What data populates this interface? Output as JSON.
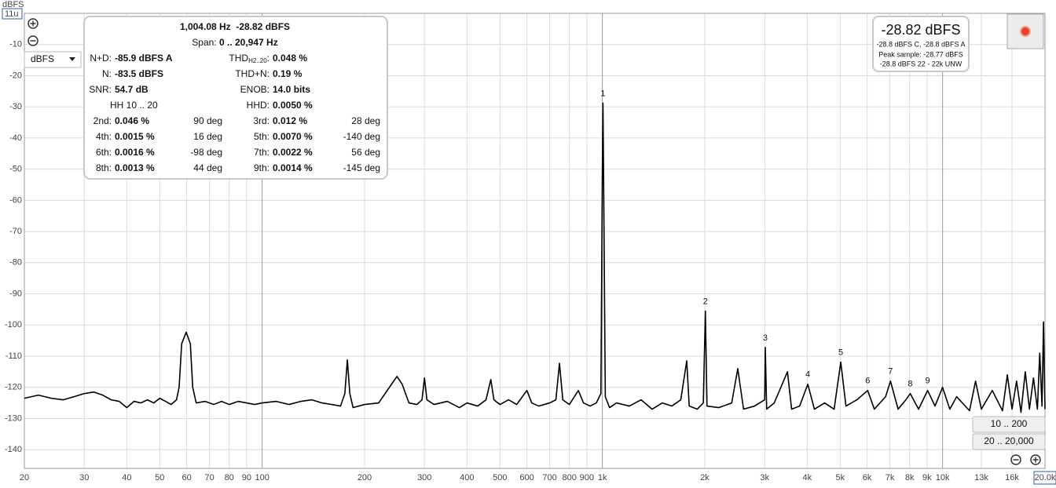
{
  "chart_data": {
    "type": "line",
    "xlog": true,
    "grid": true,
    "ylabel": "dBFS",
    "y_field": "11u",
    "xlim": [
      20,
      20000
    ],
    "ylim": [
      -146,
      0
    ],
    "xticks": [
      20,
      30,
      40,
      50,
      60,
      70,
      80,
      90,
      100,
      200,
      300,
      400,
      500,
      600,
      700,
      800,
      900,
      {
        "value": 1000,
        "label": "1k"
      },
      {
        "value": 2000,
        "label": "2k"
      },
      {
        "value": 3000,
        "label": "3k"
      },
      {
        "value": 4000,
        "label": "4k"
      },
      {
        "value": 5000,
        "label": "5k"
      },
      {
        "value": 6000,
        "label": "6k"
      },
      {
        "value": 7000,
        "label": "7k"
      },
      {
        "value": 8000,
        "label": "8k"
      },
      {
        "value": 9000,
        "label": "9k"
      },
      {
        "value": 10000,
        "label": "10k"
      },
      {
        "value": 13000,
        "label": "13k"
      },
      {
        "value": 16000,
        "label": "16k"
      },
      {
        "value": 20000,
        "label": "20.0k"
      }
    ],
    "yticks": [
      -10,
      -20,
      -30,
      -40,
      -50,
      -60,
      -70,
      -80,
      -90,
      -100,
      -110,
      -120,
      -130,
      -140
    ],
    "x": [
      20,
      22,
      24,
      26,
      28,
      30,
      32,
      34,
      36,
      38,
      40,
      42,
      44,
      46,
      48,
      50,
      52,
      54,
      56,
      57,
      58,
      59.8,
      61.5,
      62.5,
      64,
      68,
      72,
      76,
      80,
      85,
      90,
      95,
      100,
      110,
      120,
      130,
      140,
      150,
      160,
      170,
      175,
      178,
      181,
      185,
      200,
      220,
      240,
      249,
      258,
      270,
      285,
      295,
      300,
      305,
      320,
      350,
      380,
      400,
      430,
      455,
      470,
      480,
      500,
      530,
      560,
      600,
      620,
      650,
      700,
      730,
      748,
      765,
      800,
      850,
      880,
      920,
      960,
      990,
      1000,
      1004,
      1008,
      1020,
      1050,
      1100,
      1200,
      1300,
      1400,
      1500,
      1600,
      1700,
      1770,
      1800,
      1900,
      1980,
      2008,
      2030,
      2200,
      2400,
      2500,
      2600,
      2800,
      3000,
      3012,
      3040,
      3200,
      3500,
      3600,
      3800,
      4016,
      4200,
      4500,
      4800,
      5020,
      5200,
      5600,
      6024,
      6300,
      6800,
      7028,
      7400,
      7800,
      8033,
      8500,
      9037,
      9500,
      10000,
      10500,
      11000,
      12000,
      12500,
      13000,
      14000,
      15000,
      15500,
      16000,
      16500,
      17000,
      17500,
      18000,
      18500,
      19000,
      19300,
      19600,
      19800,
      20000
    ],
    "series": [
      {
        "color": "#000000",
        "values": [
          -123.5,
          -122.5,
          -123.5,
          -124,
          -123,
          -122,
          -121.5,
          -122.5,
          -124,
          -124.5,
          -126.5,
          -124.5,
          -125,
          -124,
          -125,
          -123.5,
          -124.5,
          -125.5,
          -124,
          -120,
          -106,
          -102.3,
          -106,
          -120,
          -125,
          -124.5,
          -125.5,
          -124.5,
          -125.5,
          -124.5,
          -125,
          -125.5,
          -125,
          -124.5,
          -125.5,
          -124.5,
          -124,
          -125,
          -125.5,
          -126,
          -122,
          -111.2,
          -122,
          -126.5,
          -125.5,
          -125,
          -119,
          -116.5,
          -119,
          -125,
          -125.5,
          -124,
          -117,
          -124,
          -125.5,
          -124.5,
          -126.5,
          -125,
          -126,
          -124,
          -117.5,
          -124,
          -125.5,
          -124,
          -125.5,
          -121,
          -125,
          -126,
          -125,
          -124,
          -112.3,
          -124,
          -125.5,
          -121,
          -125,
          -126,
          -125,
          -122,
          -50,
          -28.8,
          -50,
          -123,
          -126.5,
          -125,
          -126,
          -124,
          -127,
          -125,
          -126,
          -124,
          -111.5,
          -126,
          -127,
          -125,
          -95.5,
          -126,
          -126.5,
          -125,
          -114,
          -127,
          -126,
          -124,
          -107.2,
          -127,
          -125,
          -115,
          -127,
          -126,
          -119,
          -127,
          -125,
          -127,
          -111.9,
          -126,
          -124,
          -121,
          -127,
          -123,
          -118,
          -127,
          -124,
          -122,
          -127,
          -121,
          -126,
          -120,
          -127,
          -123,
          -127.5,
          -118,
          -127,
          -121,
          -127.5,
          -116,
          -127,
          -118,
          -128,
          -115,
          -127,
          -117,
          -127,
          -109,
          -126,
          -99,
          -127
        ]
      }
    ],
    "harmonics": [
      {
        "label": "1",
        "x": 1004,
        "y": -28.8
      },
      {
        "label": "2",
        "x": 2008,
        "y": -95.5
      },
      {
        "label": "3",
        "x": 3012,
        "y": -107.2
      },
      {
        "label": "4",
        "x": 4016,
        "y": -119
      },
      {
        "label": "5",
        "x": 5020,
        "y": -111.9
      },
      {
        "label": "6",
        "x": 6024,
        "y": -121
      },
      {
        "label": "7",
        "x": 7028,
        "y": -118
      },
      {
        "label": "8",
        "x": 8033,
        "y": -122
      },
      {
        "label": "9",
        "x": 9037,
        "y": -121
      }
    ]
  },
  "controls": {
    "unit_select": "dBFS",
    "range_buttons": [
      "10 .. 200",
      "20 .. 20,000"
    ]
  },
  "info": {
    "headline": "1,004.08 Hz  -28.82 dBFS",
    "span_label": "Span:",
    "span_value": "0 .. 20,947 Hz",
    "rows": [
      [
        {
          "label": "N+D:",
          "value": "-85.9 dBFS A"
        },
        {
          "label": "THD",
          "sub": "H2..20",
          "colon": ":",
          "value": "0.048 %"
        }
      ],
      [
        {
          "label": "N:",
          "value": "-83.5 dBFS"
        },
        {
          "label": "THD+N:",
          "value": "0.19 %"
        }
      ],
      [
        {
          "label": "SNR:",
          "value": "54.7 dB"
        },
        {
          "label": "ENOB:",
          "value": "14.0 bits"
        }
      ],
      [
        {
          "label": "HH 10 .. 20"
        },
        {
          "label": "HHD:",
          "value": "0.0050 %"
        }
      ],
      [
        {
          "label": "2nd:",
          "value": "0.046 %",
          "phase": "90 deg"
        },
        {
          "label": "3rd:",
          "value": "0.012 %",
          "phase": "28 deg"
        }
      ],
      [
        {
          "label": "4th:",
          "value": "0.0015 %",
          "phase": "16 deg"
        },
        {
          "label": "5th:",
          "value": "0.0070 %",
          "phase": "-140 deg"
        }
      ],
      [
        {
          "label": "6th:",
          "value": "0.0016 %",
          "phase": "-98 deg"
        },
        {
          "label": "7th:",
          "value": "0.0022 %",
          "phase": "56 deg"
        }
      ],
      [
        {
          "label": "8th:",
          "value": "0.0013 %",
          "phase": "44 deg"
        },
        {
          "label": "9th:",
          "value": "0.0014 %",
          "phase": "-145 deg"
        }
      ]
    ]
  },
  "level_panel": {
    "level": "-28.82 dBFS",
    "lines": [
      "-28.8 dBFS C, -28.8 dBFS A",
      "Peak sample: -28.77 dBFS",
      "-28.8 dBFS 22 - 22k UNW"
    ]
  }
}
